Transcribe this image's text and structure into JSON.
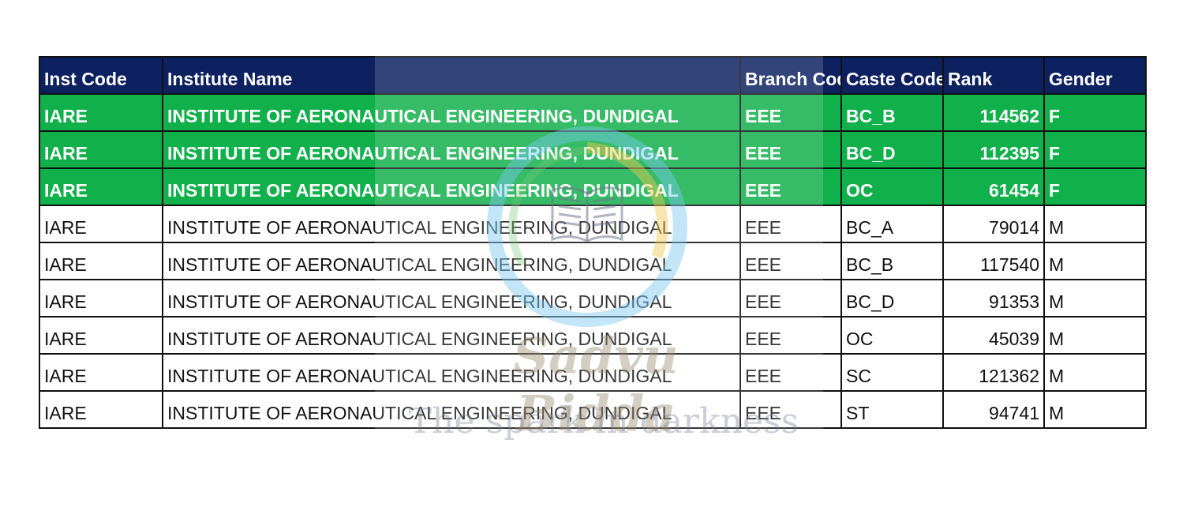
{
  "table": {
    "headers": [
      "Inst Code",
      "Institute Name",
      "Branch Code",
      "Caste Code",
      "Rank",
      "Gender"
    ],
    "rows": [
      {
        "inst_code": "IARE",
        "institute_name": "INSTITUTE OF AERONAUTICAL ENGINEERING, DUNDIGAL",
        "branch_code": "EEE",
        "caste_code": "BC_B",
        "rank": "114562",
        "gender": "F",
        "highlighted": true
      },
      {
        "inst_code": "IARE",
        "institute_name": "INSTITUTE OF AERONAUTICAL ENGINEERING, DUNDIGAL",
        "branch_code": "EEE",
        "caste_code": "BC_D",
        "rank": "112395",
        "gender": "F",
        "highlighted": true
      },
      {
        "inst_code": "IARE",
        "institute_name": "INSTITUTE OF AERONAUTICAL ENGINEERING, DUNDIGAL",
        "branch_code": "EEE",
        "caste_code": "OC",
        "rank": "61454",
        "gender": "F",
        "highlighted": true
      },
      {
        "inst_code": "IARE",
        "institute_name": "INSTITUTE OF AERONAUTICAL ENGINEERING, DUNDIGAL",
        "branch_code": "EEE",
        "caste_code": "BC_A",
        "rank": "79014",
        "gender": "M",
        "highlighted": false
      },
      {
        "inst_code": "IARE",
        "institute_name": "INSTITUTE OF AERONAUTICAL ENGINEERING, DUNDIGAL",
        "branch_code": "EEE",
        "caste_code": "BC_B",
        "rank": "117540",
        "gender": "M",
        "highlighted": false
      },
      {
        "inst_code": "IARE",
        "institute_name": "INSTITUTE OF AERONAUTICAL ENGINEERING, DUNDIGAL",
        "branch_code": "EEE",
        "caste_code": "BC_D",
        "rank": "91353",
        "gender": "M",
        "highlighted": false
      },
      {
        "inst_code": "IARE",
        "institute_name": "INSTITUTE OF AERONAUTICAL ENGINEERING, DUNDIGAL",
        "branch_code": "EEE",
        "caste_code": "OC",
        "rank": "45039",
        "gender": "M",
        "highlighted": false
      },
      {
        "inst_code": "IARE",
        "institute_name": "INSTITUTE OF AERONAUTICAL ENGINEERING, DUNDIGAL",
        "branch_code": "EEE",
        "caste_code": "SC",
        "rank": "121362",
        "gender": "M",
        "highlighted": false
      },
      {
        "inst_code": "IARE",
        "institute_name": "INSTITUTE OF AERONAUTICAL ENGINEERING, DUNDIGAL",
        "branch_code": "EEE",
        "caste_code": "ST",
        "rank": "94741",
        "gender": "M",
        "highlighted": false
      }
    ]
  },
  "watermark": {
    "title": "Sadvu Bidda",
    "subtitle": "The spark in darkness",
    "logo_icon": "book-in-ring-icon"
  },
  "colors": {
    "header_bg": "#0d2161",
    "highlight_bg": "#10b04b",
    "border": "#111111"
  }
}
